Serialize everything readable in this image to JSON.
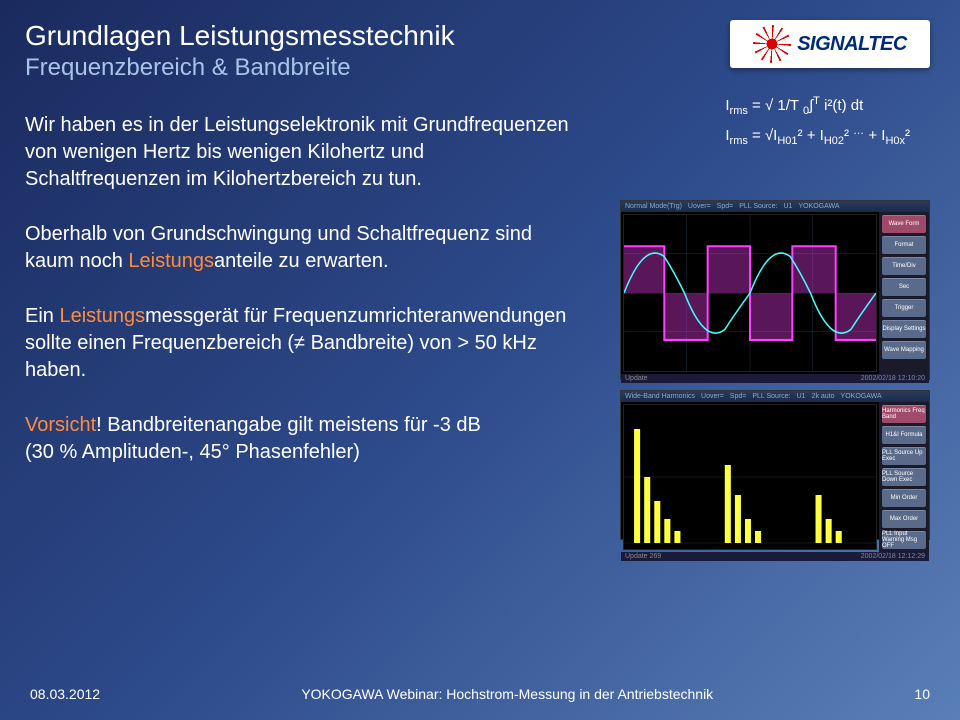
{
  "header": {
    "title": "Grundlagen Leistungsmesstechnik",
    "subtitle": "Frequenzbereich & Bandbreite",
    "logo_text": "SIGNALTEC"
  },
  "paragraphs": {
    "p1a": "Wir haben es in der Leistungselektronik mit Grundfrequenzen von wenigen Hertz bis wenigen Kilohertz und Schaltfrequenzen im Kilohertzbereich zu tun.",
    "p2a": "Oberhalb von Grundschwingung und Schaltfrequenz sind kaum noch ",
    "p2hl": "Leistungs",
    "p2b": "anteile zu erwarten.",
    "p3a": "Ein ",
    "p3hl": "Leistungs",
    "p3b": "messgerät für Frequenzumrichteranwendungen sollte einen Frequenzbereich (≠ Bandbreite) von > 50 kHz haben.",
    "p4a": "Vorsicht",
    "p4b": "! Bandbreitenangabe gilt meistens für -3 dB",
    "p4c": "(30 % Amplituden-, 45° Phasenfehler)"
  },
  "formula": {
    "line1_html": "I<sub>rms</sub> = √ 1/T <sub>0</sub>∫<sup>T</sup> i²(t) dt",
    "line2_html": "I<sub>rms</sub> = √I<sub>H01</sub>² + I<sub>H02</sub>² <sup>…</sup> + I<sub>H0x</sub>²"
  },
  "scope1": {
    "menu_items": [
      "Normal Mode(Trg)",
      "Uover=",
      "Spd=",
      "PLL Source:",
      "U1",
      "YOKOGAWA"
    ],
    "side_buttons": [
      "Wave Form",
      "Format",
      "Time/Div",
      "Sec",
      "Trigger",
      "Display Settings",
      "Wave Mapping"
    ],
    "footer_left": "Update",
    "footer_right": "2002/02/18 12:10:20",
    "waveform": {
      "type": "scope-trace",
      "background": "#000000",
      "grid_color": "#203040",
      "traces": [
        {
          "color": "#ff40ff",
          "type": "square",
          "amplitude": 0.8,
          "cycles": 3
        },
        {
          "color": "#40ffff",
          "type": "sine-distorted",
          "amplitude": 0.6,
          "cycles": 3
        }
      ]
    }
  },
  "scope2": {
    "menu_items": [
      "Wide-Band Harmonics",
      "Uover=",
      "Spd=",
      "PLL Source:",
      "U1",
      "2k auto",
      "YOKOGAWA"
    ],
    "side_buttons": [
      "Harmonics Freq Band",
      "H1&I Formula",
      "PLL Source Up Exec",
      "PLL Source Down Exec",
      "Min Order",
      "Max Order",
      "PLL Input Warning Msg OFF"
    ],
    "footer_left": "Update 269",
    "footer_right": "2002/02/18 12:12:29",
    "waveform": {
      "type": "harmonics-bars",
      "background": "#000000",
      "grid_color": "#203040",
      "bar_color": "#ffff40",
      "groups": 3,
      "bars_per_group": [
        5,
        4,
        3
      ],
      "max_height": 0.9
    }
  },
  "footer": {
    "date": "08.03.2012",
    "center": "YOKOGAWA Webinar: Hochstrom-Messung in der Antriebstechnik",
    "page": "10"
  },
  "colors": {
    "bg_start": "#1a2a5e",
    "bg_end": "#5a7fb8",
    "subtitle": "#a8c4e8",
    "highlight": "#ff8c3a"
  }
}
